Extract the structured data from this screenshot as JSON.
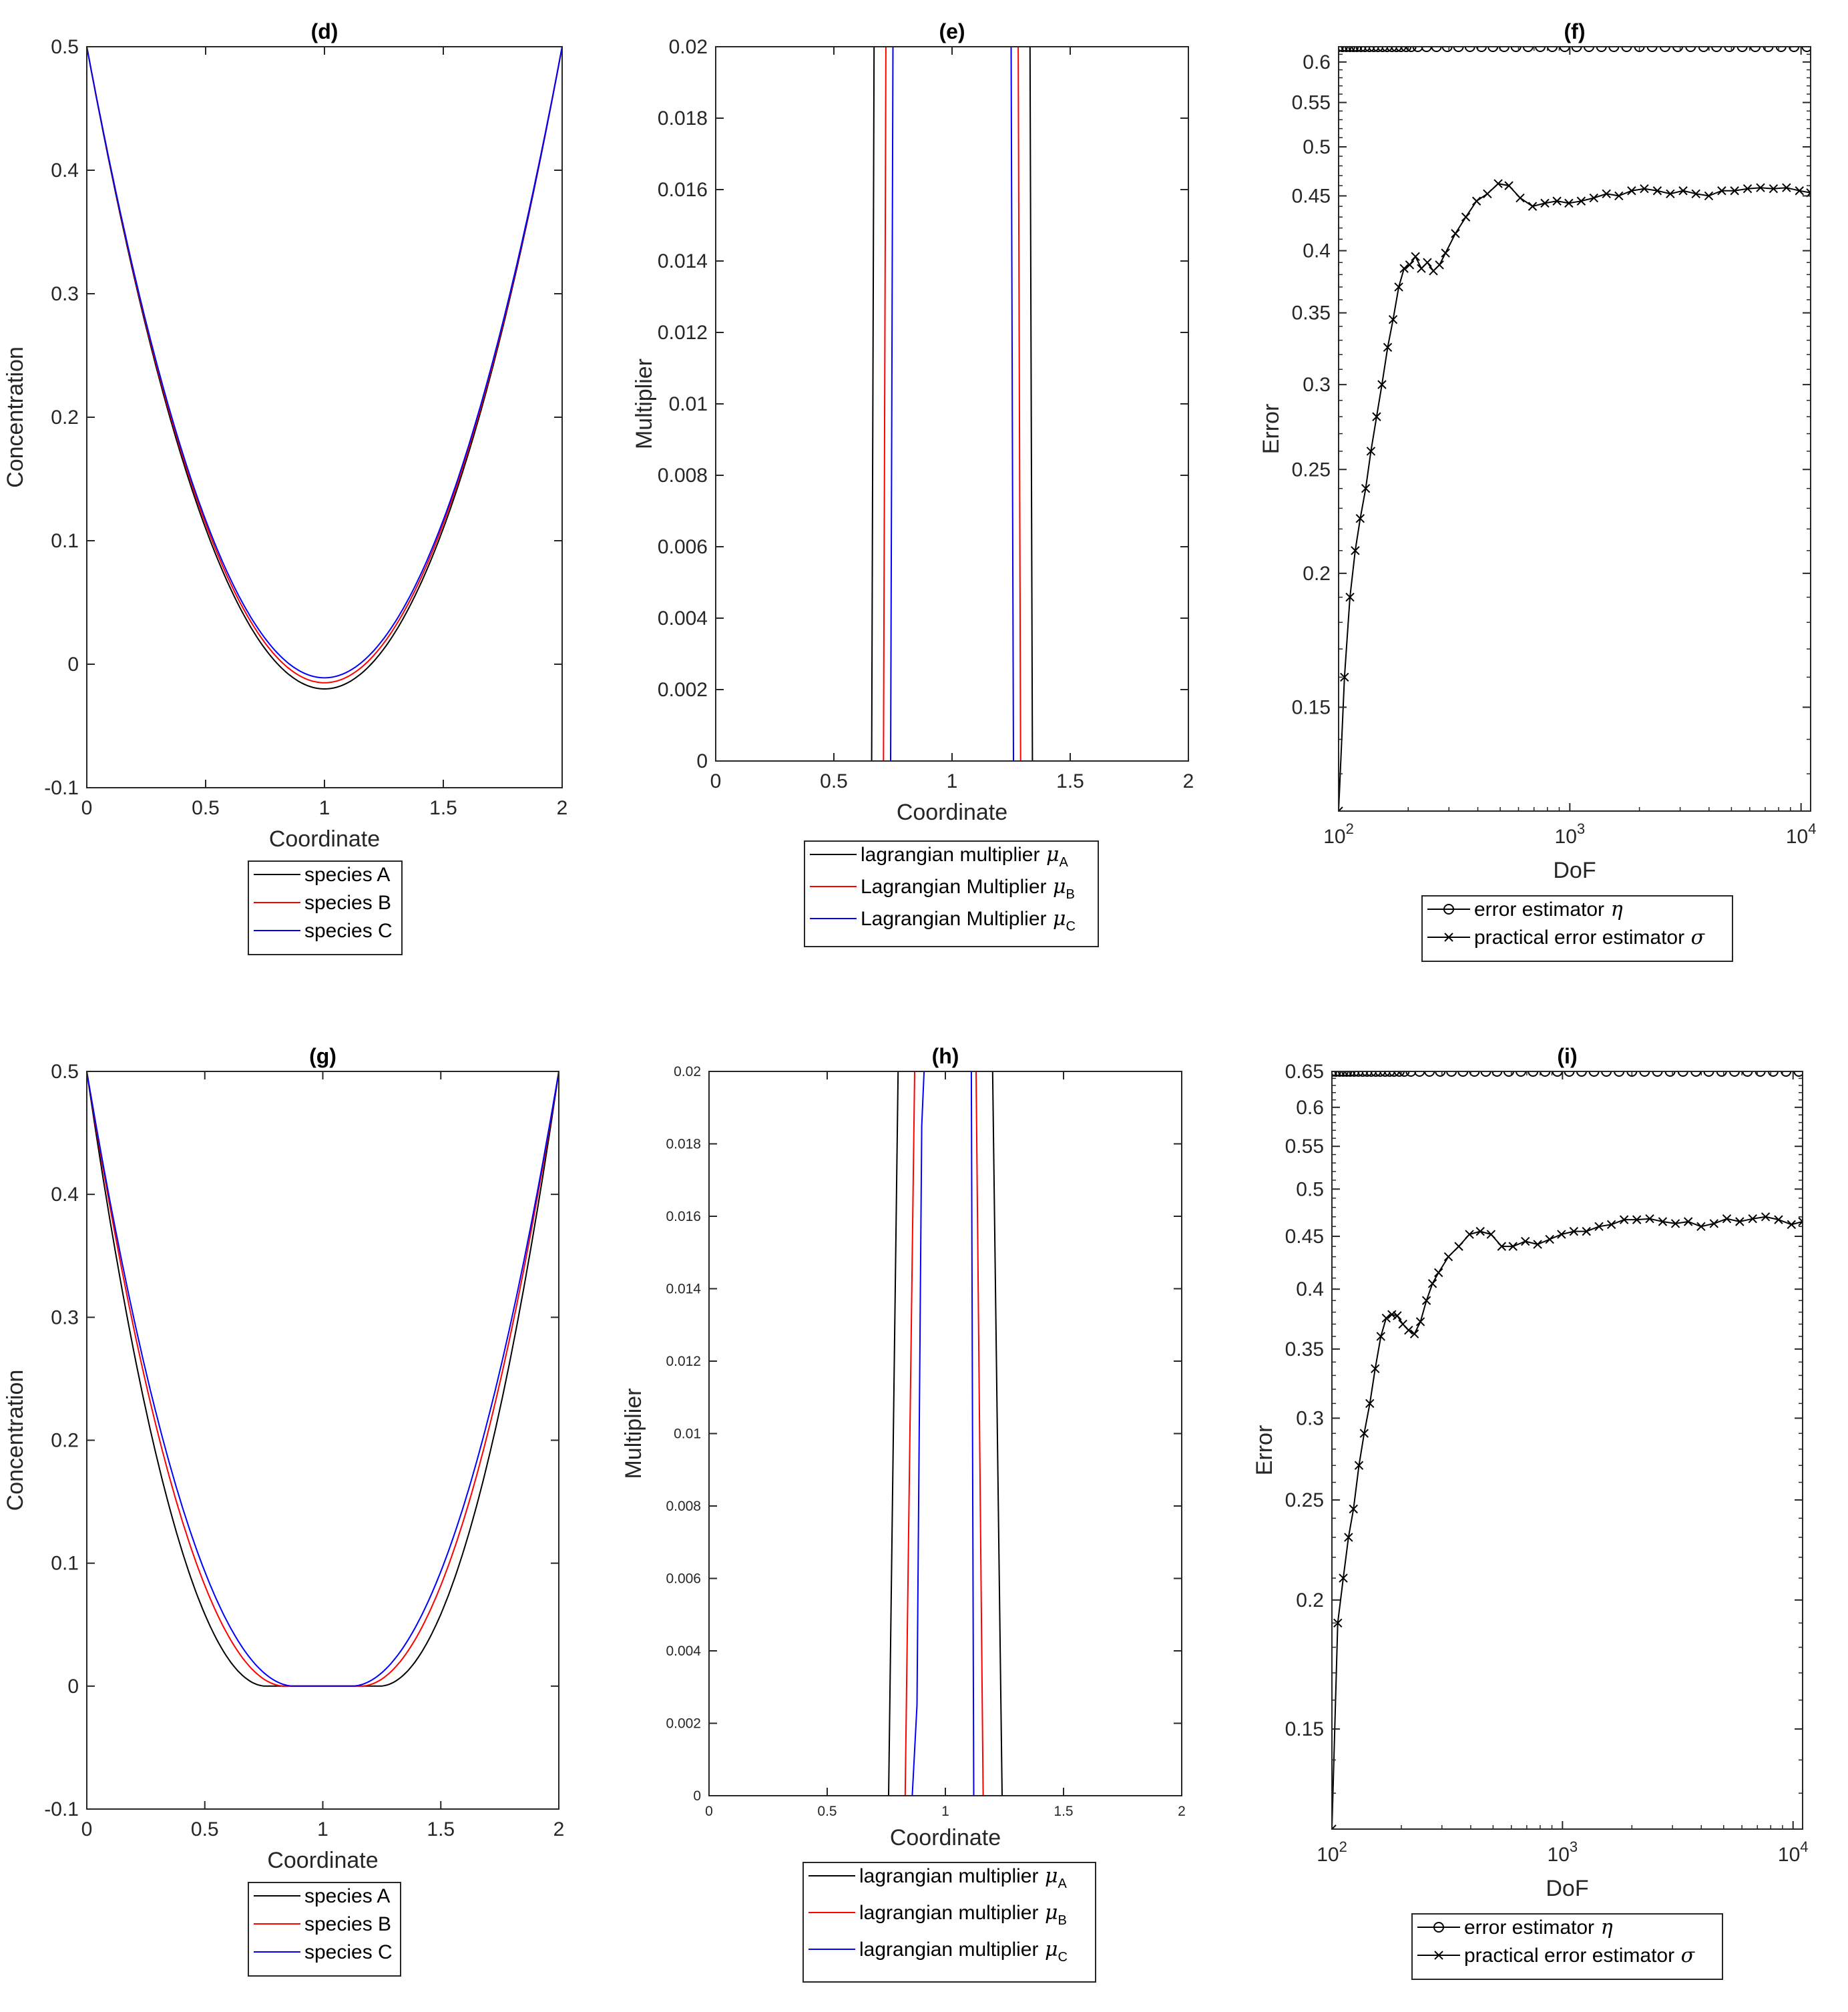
{
  "figure": {
    "background": "#ffffff"
  },
  "chart_data": [
    {
      "id": "d",
      "type": "line",
      "title": "(d)",
      "xlabel": "Coordinate",
      "ylabel": "Concentration",
      "xlim": [
        0,
        2
      ],
      "ylim": [
        -0.1,
        0.5
      ],
      "xticks": [
        "0",
        "0.5",
        "1",
        "1.5",
        "2"
      ],
      "yticks": [
        "-0.1",
        "0",
        "0.1",
        "0.2",
        "0.3",
        "0.4",
        "0.5"
      ],
      "curve_model": "parabola",
      "series": [
        {
          "name": "species A",
          "color": "#000000",
          "min": -0.02
        },
        {
          "name": "species B",
          "color": "#ff0000",
          "min": -0.015
        },
        {
          "name": "species C",
          "color": "#0000ff",
          "min": -0.011
        }
      ]
    },
    {
      "id": "e",
      "type": "line",
      "title": "(e)",
      "xlabel": "Coordinate",
      "ylabel": "Multiplier",
      "xlim": [
        0,
        2
      ],
      "ylim": [
        0,
        0.02
      ],
      "xticks": [
        "0",
        "0.5",
        "1",
        "1.5",
        "2"
      ],
      "yticks": [
        "0",
        "0.002",
        "0.004",
        "0.006",
        "0.008",
        "0.01",
        "0.012",
        "0.014",
        "0.016",
        "0.018",
        "0.02"
      ],
      "series": [
        {
          "name": "lagrangian multiplier",
          "sub": "A",
          "color": "#000000",
          "x": [
            0,
            0.66,
            0.67,
            1.33,
            1.34,
            2
          ],
          "y": [
            0,
            0,
            0.02,
            0.02,
            0,
            0
          ]
        },
        {
          "name": "Lagrangian Multiplier",
          "sub": "B",
          "color": "#ff0000",
          "x": [
            0,
            0.71,
            0.72,
            1.28,
            1.29,
            2
          ],
          "y": [
            0,
            0,
            0.02,
            0.02,
            0,
            0
          ]
        },
        {
          "name": "Lagrangian Multiplier",
          "sub": "C",
          "color": "#0000ff",
          "x": [
            0,
            0.74,
            0.75,
            1.25,
            1.26,
            2
          ],
          "y": [
            0,
            0,
            0.02,
            0.02,
            0,
            0
          ]
        }
      ]
    },
    {
      "id": "f",
      "type": "line",
      "title": "(f)",
      "xlabel": "DoF",
      "ylabel": "Error",
      "xscale": "log",
      "yscale": "log",
      "xlim": [
        100,
        11000
      ],
      "ylim": [
        0.12,
        0.62
      ],
      "xticks": [
        {
          "v": 100,
          "base": "10",
          "exp": "2"
        },
        {
          "v": 1000,
          "base": "10",
          "exp": "3"
        },
        {
          "v": 10000,
          "base": "10",
          "exp": "4"
        }
      ],
      "yticks": [
        "0.15",
        "0.2",
        "0.25",
        "0.3",
        "0.35",
        "0.4",
        "0.45",
        "0.5",
        "0.55",
        "0.6"
      ],
      "series": [
        {
          "name": "error estimator",
          "greek": "η",
          "color": "#000000",
          "marker": "o",
          "const": 0.62
        },
        {
          "name": "practical error estimator",
          "greek": "σ",
          "color": "#000000",
          "marker": "x",
          "x": [
            100,
            106,
            112,
            118,
            124,
            131,
            138,
            146,
            154,
            163,
            172,
            182,
            192,
            203,
            215,
            228,
            242,
            257,
            273,
            290,
            320,
            355,
            395,
            440,
            490,
            545,
            610,
            690,
            780,
            880,
            990,
            1120,
            1270,
            1440,
            1630,
            1850,
            2100,
            2390,
            2720,
            3090,
            3510,
            3990,
            4540,
            5160,
            5870,
            6680,
            7600,
            8650,
            9840,
            11000
          ],
          "y": [
            0.12,
            0.16,
            0.19,
            0.21,
            0.225,
            0.24,
            0.26,
            0.28,
            0.3,
            0.325,
            0.345,
            0.37,
            0.385,
            0.388,
            0.395,
            0.385,
            0.39,
            0.383,
            0.388,
            0.398,
            0.415,
            0.43,
            0.445,
            0.452,
            0.462,
            0.46,
            0.448,
            0.44,
            0.443,
            0.445,
            0.443,
            0.445,
            0.448,
            0.452,
            0.45,
            0.455,
            0.457,
            0.455,
            0.452,
            0.455,
            0.452,
            0.45,
            0.455,
            0.455,
            0.457,
            0.458,
            0.457,
            0.458,
            0.455,
            0.453
          ]
        }
      ]
    },
    {
      "id": "g",
      "type": "line",
      "title": "(g)",
      "xlabel": "Coordinate",
      "ylabel": "Concentration",
      "xlim": [
        0,
        2
      ],
      "ylim": [
        -0.1,
        0.5
      ],
      "xticks": [
        "0",
        "0.5",
        "1",
        "1.5",
        "2"
      ],
      "yticks": [
        "-0.1",
        "0",
        "0.1",
        "0.2",
        "0.3",
        "0.4",
        "0.5"
      ],
      "curve_model": "plateau",
      "series": [
        {
          "name": "species A",
          "color": "#000000",
          "flat": 0.24
        },
        {
          "name": "species B",
          "color": "#ff0000",
          "flat": 0.16
        },
        {
          "name": "species C",
          "color": "#0000ff",
          "flat": 0.12
        }
      ]
    },
    {
      "id": "h",
      "type": "line",
      "title": "(h)",
      "xlabel": "Coordinate",
      "ylabel": "Multiplier",
      "xlim": [
        0,
        2
      ],
      "ylim": [
        0,
        0.02
      ],
      "xticks": [
        "0",
        "0.5",
        "1",
        "1.5",
        "2"
      ],
      "yticks": [
        "0",
        "0.002",
        "0.004",
        "0.006",
        "0.008",
        "0.01",
        "0.012",
        "0.014",
        "0.016",
        "0.018",
        "0.02"
      ],
      "series": [
        {
          "name": "lagrangian multiplier",
          "sub": "A",
          "color": "#000000",
          "x": [
            0,
            0.76,
            0.8,
            1.2,
            1.24,
            2
          ],
          "y": [
            0,
            0,
            0.02,
            0.02,
            0,
            0
          ]
        },
        {
          "name": "lagrangian multiplier",
          "sub": "B",
          "color": "#ff0000",
          "x": [
            0,
            0.83,
            0.87,
            1.13,
            1.16,
            2
          ],
          "y": [
            0,
            0,
            0.02,
            0.02,
            0,
            0
          ]
        },
        {
          "name": "lagrangian multiplier",
          "sub": "C",
          "color": "#0000ff",
          "x": [
            0,
            0.86,
            0.88,
            0.9,
            0.91,
            1.11,
            1.12,
            2
          ],
          "y": [
            0,
            0,
            0.0025,
            0.0185,
            0.02,
            0.02,
            0,
            0
          ]
        }
      ]
    },
    {
      "id": "i",
      "type": "line",
      "title": "(i)",
      "xlabel": "DoF",
      "ylabel": "Error",
      "xscale": "log",
      "yscale": "log",
      "xlim": [
        100,
        11000
      ],
      "ylim": [
        0.12,
        0.65
      ],
      "xticks": [
        {
          "v": 100,
          "base": "10",
          "exp": "2"
        },
        {
          "v": 1000,
          "base": "10",
          "exp": "3"
        },
        {
          "v": 10000,
          "base": "10",
          "exp": "4"
        }
      ],
      "yticks": [
        "0.15",
        "0.2",
        "0.25",
        "0.3",
        "0.35",
        "0.4",
        "0.45",
        "0.5",
        "0.55",
        "0.6",
        "0.65"
      ],
      "series": [
        {
          "name": "error estimator",
          "greek": "η",
          "color": "#000000",
          "marker": "o",
          "const": 0.65
        },
        {
          "name": "practical error estimator",
          "greek": "σ",
          "color": "#000000",
          "marker": "x",
          "x": [
            100,
            106,
            112,
            118,
            124,
            131,
            138,
            146,
            154,
            163,
            172,
            182,
            192,
            203,
            215,
            228,
            242,
            257,
            273,
            290,
            320,
            355,
            395,
            440,
            490,
            545,
            610,
            690,
            780,
            880,
            990,
            1120,
            1270,
            1440,
            1630,
            1850,
            2100,
            2390,
            2720,
            3090,
            3510,
            3990,
            4540,
            5160,
            5870,
            6680,
            7600,
            8650,
            9840,
            11000
          ],
          "y": [
            0.12,
            0.19,
            0.21,
            0.23,
            0.245,
            0.27,
            0.29,
            0.31,
            0.335,
            0.36,
            0.375,
            0.378,
            0.377,
            0.37,
            0.365,
            0.362,
            0.372,
            0.39,
            0.405,
            0.415,
            0.43,
            0.44,
            0.452,
            0.455,
            0.452,
            0.44,
            0.44,
            0.445,
            0.442,
            0.447,
            0.452,
            0.455,
            0.455,
            0.46,
            0.462,
            0.467,
            0.467,
            0.468,
            0.465,
            0.463,
            0.465,
            0.46,
            0.463,
            0.468,
            0.465,
            0.468,
            0.47,
            0.467,
            0.462,
            0.465
          ]
        }
      ]
    }
  ]
}
